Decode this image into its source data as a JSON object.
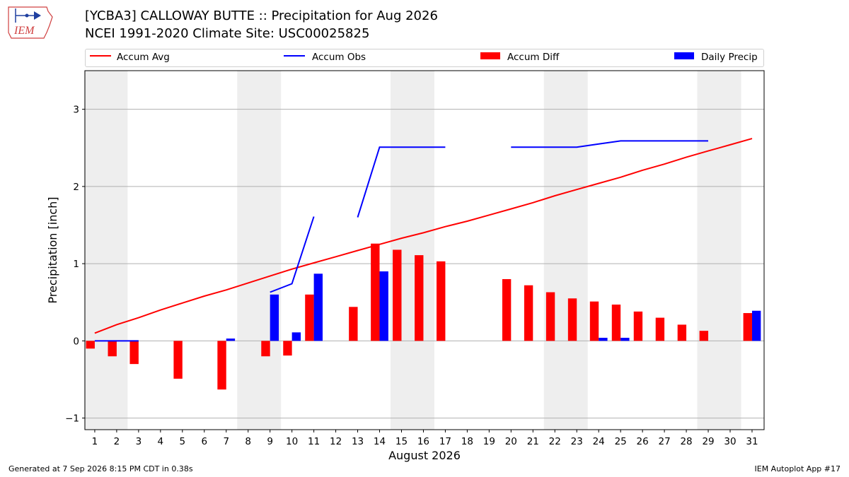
{
  "header": {
    "title_line1": "[YCBA3] CALLOWAY BUTTE :: Precipitation for Aug 2026",
    "title_line2": "NCEI 1991-2020 Climate Site: USC00025825",
    "logo_text": "IEM"
  },
  "footer": {
    "left": "Generated at 7 Sep 2026 8:15 PM CDT in 0.38s",
    "right": "IEM Autoplot App #17"
  },
  "colors": {
    "accum_avg": "#ff0000",
    "accum_obs": "#0000ff",
    "accum_diff": "#ff0000",
    "daily_precip": "#0000ff",
    "weekend_band": "#eeeeee",
    "grid": "#b0b0b0"
  },
  "chart_data": {
    "type": "bar",
    "xlabel": "August 2026",
    "ylabel": "Precipitation [inch]",
    "ylim": [
      -1.15,
      3.5
    ],
    "yticks": [
      -1,
      0,
      1,
      2,
      3
    ],
    "grid": "horizontal",
    "legend_position": "top",
    "days": [
      1,
      2,
      3,
      4,
      5,
      6,
      7,
      8,
      9,
      10,
      11,
      12,
      13,
      14,
      15,
      16,
      17,
      18,
      19,
      20,
      21,
      22,
      23,
      24,
      25,
      26,
      27,
      28,
      29,
      30,
      31
    ],
    "weekend_bands": [
      [
        1,
        2
      ],
      [
        8,
        9
      ],
      [
        15,
        16
      ],
      [
        22,
        23
      ],
      [
        29,
        30
      ]
    ],
    "series": [
      {
        "name": "Accum Avg",
        "kind": "line",
        "values": [
          0.1,
          0.21,
          0.3,
          0.4,
          0.49,
          0.58,
          0.66,
          0.75,
          0.84,
          0.93,
          1.01,
          1.09,
          1.17,
          1.25,
          1.33,
          1.4,
          1.48,
          1.55,
          1.63,
          1.71,
          1.79,
          1.88,
          1.96,
          2.04,
          2.12,
          2.21,
          2.29,
          2.38,
          2.46,
          2.54,
          2.62
        ]
      },
      {
        "name": "Accum Obs",
        "kind": "line",
        "values": [
          0.0,
          0.0,
          0.0,
          null,
          null,
          null,
          null,
          null,
          0.63,
          0.74,
          1.61,
          null,
          1.6,
          2.51,
          2.51,
          2.51,
          2.51,
          null,
          null,
          2.51,
          2.51,
          2.51,
          2.51,
          2.55,
          2.59,
          2.59,
          2.59,
          2.59,
          2.59,
          null,
          null
        ]
      },
      {
        "name": "Accum Diff",
        "kind": "bar",
        "values": [
          -0.1,
          -0.2,
          -0.3,
          null,
          -0.49,
          null,
          -0.63,
          null,
          -0.2,
          -0.19,
          0.6,
          null,
          0.44,
          1.26,
          1.18,
          1.11,
          1.03,
          null,
          null,
          0.8,
          0.72,
          0.63,
          0.55,
          0.51,
          0.47,
          0.38,
          0.3,
          0.21,
          0.13,
          null,
          0.36
        ]
      },
      {
        "name": "Daily Precip",
        "kind": "bar",
        "values": [
          0.0,
          0.0,
          0.0,
          null,
          null,
          null,
          0.03,
          null,
          0.6,
          0.11,
          0.87,
          null,
          null,
          0.9,
          null,
          null,
          null,
          null,
          null,
          null,
          null,
          null,
          null,
          0.04,
          0.04,
          null,
          null,
          null,
          null,
          null,
          0.39
        ]
      }
    ]
  }
}
